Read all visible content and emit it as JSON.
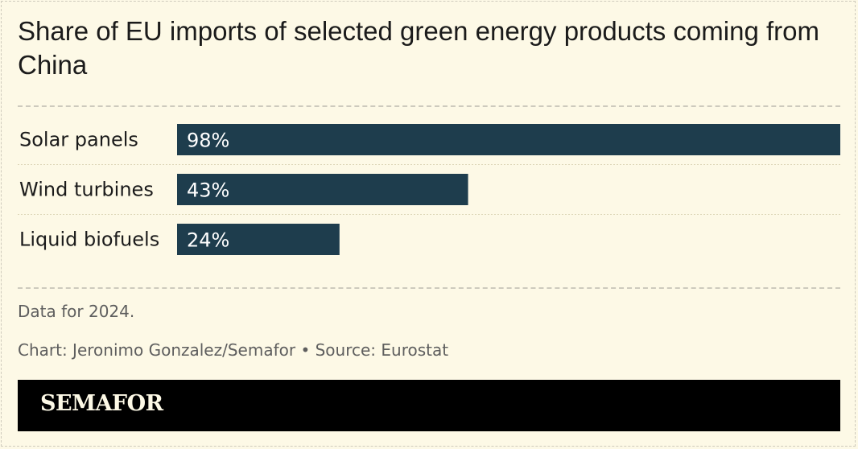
{
  "header": {
    "title": "Share of EU imports of selected green energy products coming from China"
  },
  "chart_data": {
    "type": "bar",
    "orientation": "horizontal",
    "categories": [
      "Solar panels",
      "Wind turbines",
      "Liquid biofuels"
    ],
    "values": [
      98,
      43,
      24
    ],
    "value_labels": [
      "98%",
      "43%",
      "24%"
    ],
    "xlim": [
      0,
      98
    ],
    "grid": false,
    "bar_color": "#1e3d4d",
    "label_color": "#ffffff"
  },
  "footer": {
    "note": "Data for 2024.",
    "credit": "Chart: Jeronimo Gonzalez/Semafor • Source: Eurostat",
    "brand": "SEMAFOR"
  }
}
